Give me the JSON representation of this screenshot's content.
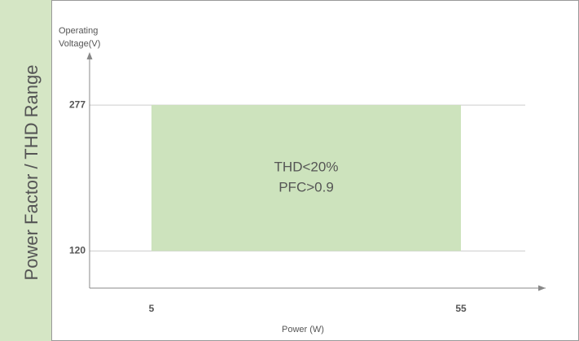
{
  "chart_data": {
    "type": "range",
    "title": "Power Factor / THD Range",
    "ylabel_lines": [
      "Operating",
      "Voltage(V)"
    ],
    "xlabel": "Power (W)",
    "xlim": [
      -5,
      65
    ],
    "xticks": [
      5,
      55
    ],
    "ylim": [
      80,
      320
    ],
    "yticks": [
      120,
      277
    ],
    "grid": true,
    "region": {
      "x": [
        5,
        55
      ],
      "y": [
        120,
        277
      ],
      "color": "#cde3bd",
      "labels": [
        "THD<20%",
        "PFC>0.9"
      ]
    }
  }
}
